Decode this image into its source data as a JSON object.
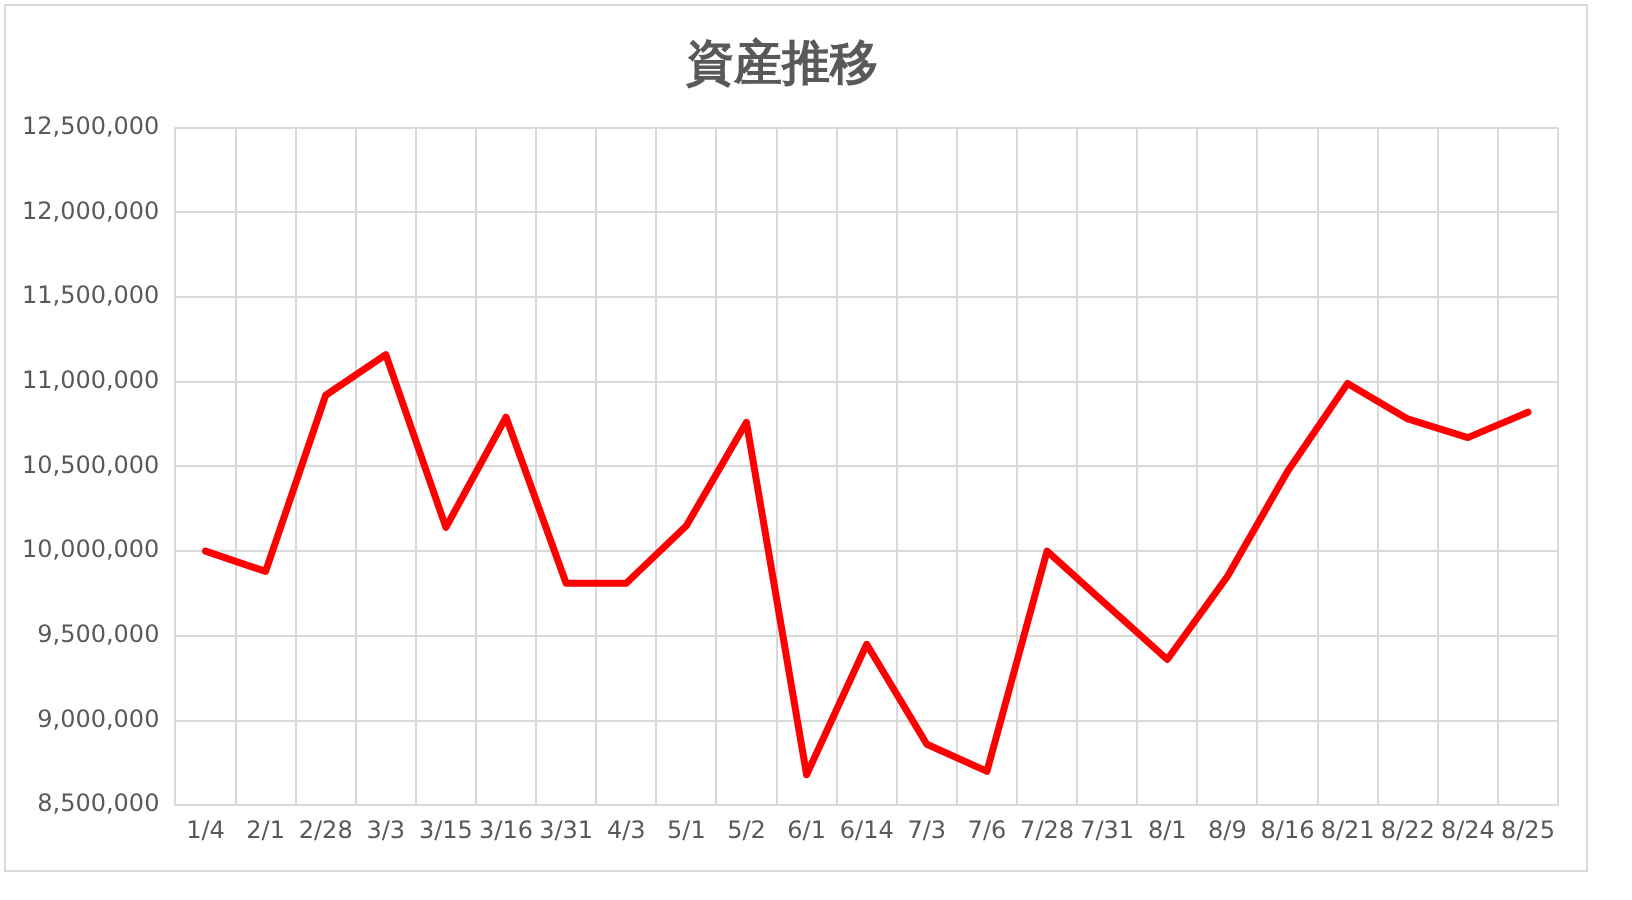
{
  "chart_data": {
    "type": "line",
    "title": "資産推移",
    "categories": [
      "1/4",
      "2/1",
      "2/28",
      "3/3",
      "3/15",
      "3/16",
      "3/31",
      "4/3",
      "5/1",
      "5/2",
      "6/1",
      "6/14",
      "7/3",
      "7/6",
      "7/28",
      "7/31",
      "8/1",
      "8/9",
      "8/16",
      "8/21",
      "8/22",
      "8/24",
      "8/25"
    ],
    "series": [
      {
        "color": "#ff0000",
        "values": [
          10000000,
          9880000,
          10920000,
          11160000,
          10140000,
          10790000,
          9810000,
          9810000,
          10150000,
          10760000,
          8680000,
          9450000,
          8860000,
          8700000,
          10000000,
          9680000,
          9360000,
          9850000,
          10470000,
          10990000,
          10780000,
          10670000,
          10820000
        ]
      }
    ],
    "ylim": [
      8500000,
      12500000
    ],
    "yticks": [
      {
        "value": 8500000,
        "label": "8,500,000"
      },
      {
        "value": 9000000,
        "label": "9,000,000"
      },
      {
        "value": 9500000,
        "label": "9,500,000"
      },
      {
        "value": 10000000,
        "label": "10,000,000"
      },
      {
        "value": 10500000,
        "label": "10,500,000"
      },
      {
        "value": 11000000,
        "label": "11,000,000"
      },
      {
        "value": 11500000,
        "label": "11,500,000"
      },
      {
        "value": 12000000,
        "label": "12,000,000"
      },
      {
        "value": 12500000,
        "label": "12,500,000"
      }
    ],
    "grid": true,
    "marker": "none",
    "line_style": "solid",
    "legend": false
  }
}
